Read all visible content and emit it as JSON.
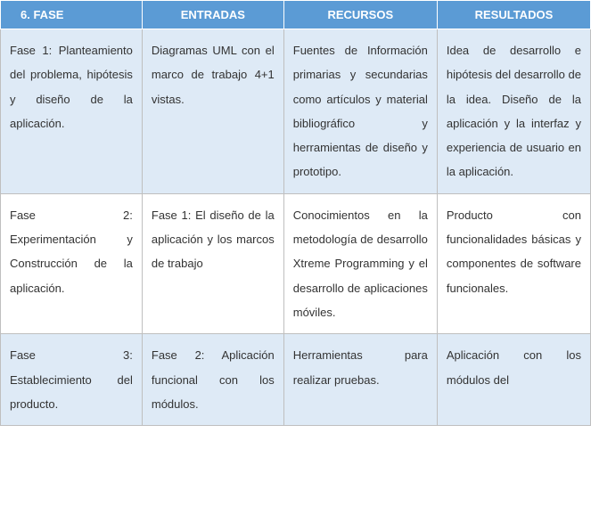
{
  "table": {
    "header_bg": "#5b9bd5",
    "header_fg": "#ffffff",
    "row_odd_bg": "#deeaf6",
    "row_even_bg": "#ffffff",
    "border_color": "#bfbfbf",
    "columns": [
      {
        "key": "fase",
        "label": "6.   FASE"
      },
      {
        "key": "entradas",
        "label": "ENTRADAS"
      },
      {
        "key": "recursos",
        "label": "RECURSOS"
      },
      {
        "key": "resultados",
        "label": "RESULTADOS"
      }
    ],
    "rows": [
      {
        "fase": "Fase 1: Planteamiento del problema, hipótesis y diseño de la aplicación.",
        "entradas": "Diagramas UML con el marco de trabajo 4+1 vistas.",
        "recursos": "Fuentes de Información primarias y secundarias como artículos y material bibliográfico y herramientas de diseño y prototipo.",
        "resultados": "Idea de desarrollo e hipótesis del desarrollo de la idea. Diseño de la aplicación y la interfaz y experiencia de usuario en la aplicación."
      },
      {
        "fase": "Fase 2: Experimentación y Construcción de la aplicación.",
        "entradas": "Fase 1: El diseño de la aplicación y los marcos de trabajo",
        "recursos": "Conocimientos en la metodología de desarrollo Xtreme Programming y el desarrollo de aplicaciones móviles.",
        "resultados": "Producto con funcionalidades básicas y componentes de software funcionales."
      },
      {
        "fase": "Fase 3: Establecimiento del producto.",
        "entradas": "Fase 2: Aplicación funcional con los módulos.",
        "recursos": "Herramientas para realizar pruebas.",
        "resultados": "Aplicación con los módulos del"
      }
    ]
  }
}
